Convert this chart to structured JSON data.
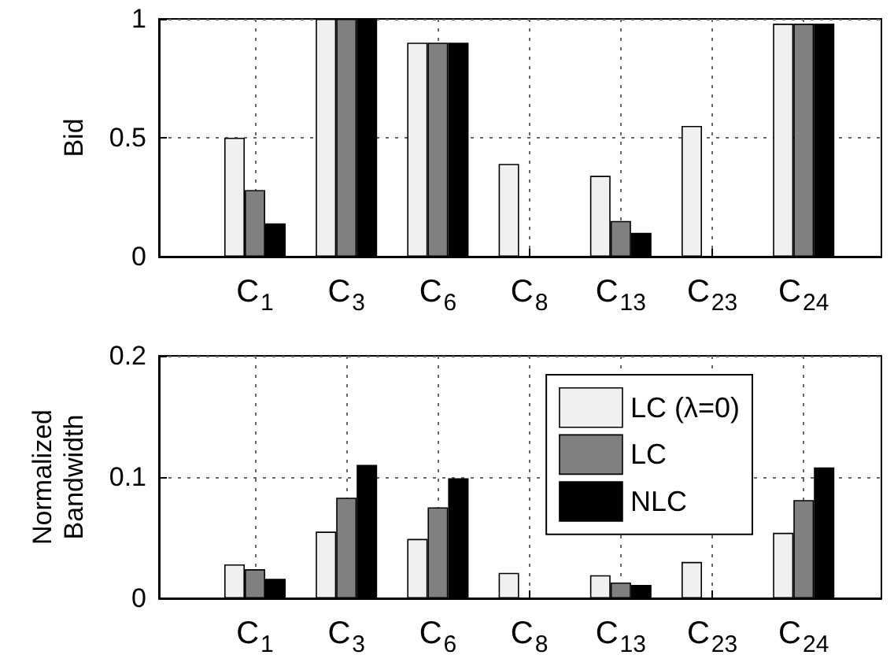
{
  "chart_data": [
    {
      "type": "bar",
      "ylabel": "Bid",
      "categories": [
        "C$_{1}$",
        "C$_{3}$",
        "C$_{6}$",
        "C$_{8}$",
        "C$_{13}$",
        "C$_{23}$",
        "C$_{24}$"
      ],
      "series": [
        {
          "color": "#f0f0f0",
          "values": [
            0.5,
            1,
            0.9,
            0.39,
            0.34,
            0.55,
            0.98
          ]
        },
        {
          "color": "#808080",
          "values": [
            0.28,
            1,
            0.9,
            null,
            0.15,
            null,
            0.98
          ]
        },
        {
          "color": "#000000",
          "values": [
            0.14,
            1,
            0.9,
            null,
            0.1,
            null,
            0.98
          ]
        }
      ],
      "ylim": [
        0,
        1
      ],
      "yticks": [
        0,
        0.5,
        1
      ],
      "grid": true,
      "legend": false
    },
    {
      "type": "bar",
      "ylabel": "Normalized Bandwidth",
      "categories": [
        "C$_{1}$",
        "C$_{3}$",
        "C$_{6}$",
        "C$_{8}$",
        "C$_{13}$",
        "C$_{23}$",
        "C$_{24}$"
      ],
      "series": [
        {
          "name": "LC (λ=0)",
          "color": "#f0f0f0",
          "values": [
            0.028,
            0.055,
            0.049,
            0.021,
            0.019,
            0.03,
            0.054
          ]
        },
        {
          "name": "LC",
          "color": "#808080",
          "values": [
            0.024,
            0.083,
            0.075,
            null,
            0.013,
            null,
            0.081
          ]
        },
        {
          "name": "NLC",
          "color": "#000000",
          "values": [
            0.016,
            0.11,
            0.099,
            null,
            0.011,
            null,
            0.108
          ]
        }
      ],
      "ylim": [
        0,
        0.2
      ],
      "yticks": [
        0,
        0.1,
        0.2
      ],
      "grid": true,
      "legend": "top right"
    }
  ]
}
